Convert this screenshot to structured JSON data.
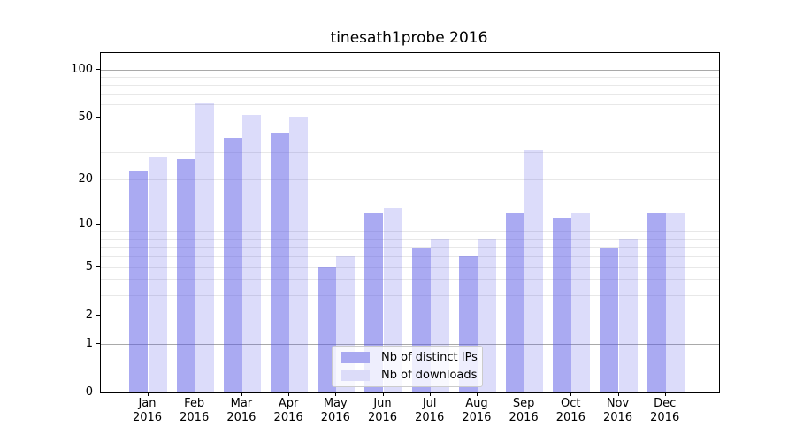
{
  "chart_data": {
    "type": "bar",
    "title": "tinesath1probe 2016",
    "categories": [
      "Jan 2016",
      "Feb 2016",
      "Mar 2016",
      "Apr 2016",
      "May 2016",
      "Jun 2016",
      "Jul 2016",
      "Aug 2016",
      "Sep 2016",
      "Oct 2016",
      "Nov 2016",
      "Dec 2016"
    ],
    "month_line1": [
      "Jan",
      "Feb",
      "Mar",
      "Apr",
      "May",
      "Jun",
      "Jul",
      "Aug",
      "Sep",
      "Oct",
      "Nov",
      "Dec"
    ],
    "month_line2": "2016",
    "series": [
      {
        "name": "Nb of distinct IPs",
        "values": [
          23,
          27,
          37,
          40,
          5,
          12,
          7,
          6,
          12,
          11,
          7,
          12
        ],
        "swatch_color": "#a9a9f1",
        "fill_color": "rgba(85,85,230,0.5)"
      },
      {
        "name": "Nb of downloads",
        "values": [
          28,
          62,
          52,
          51,
          6,
          13,
          8,
          8,
          31,
          12,
          8,
          12
        ],
        "swatch_color": "#dcdcf9",
        "fill_color": "rgba(80,80,230,0.2)"
      }
    ],
    "y_axis": {
      "scale": "log10(value+1)",
      "tick_labels": [
        "100",
        "50",
        "20",
        "10",
        "5",
        "2",
        "1",
        "0"
      ],
      "tick_values": [
        100,
        50,
        20,
        10,
        5,
        2,
        1,
        0
      ],
      "major_gridlines": [
        1,
        10,
        100
      ],
      "minor_gridlines": [
        2,
        3,
        4,
        5,
        6,
        7,
        8,
        9,
        20,
        30,
        40,
        50,
        60,
        70,
        80,
        90
      ],
      "ylim": [
        0,
        128
      ]
    },
    "grid": true,
    "legend": {
      "position": "lower center",
      "labels": [
        "Nb of distinct IPs",
        "Nb of downloads"
      ]
    },
    "colors": {
      "background": "#ffffff",
      "axis_frame": "#000000",
      "major_grid": "#a9a9a9",
      "minor_grid": "#e8e8e8",
      "distinct_ips_bar": "#a9a9f1",
      "downloads_bar": "#dcdcf9"
    }
  }
}
